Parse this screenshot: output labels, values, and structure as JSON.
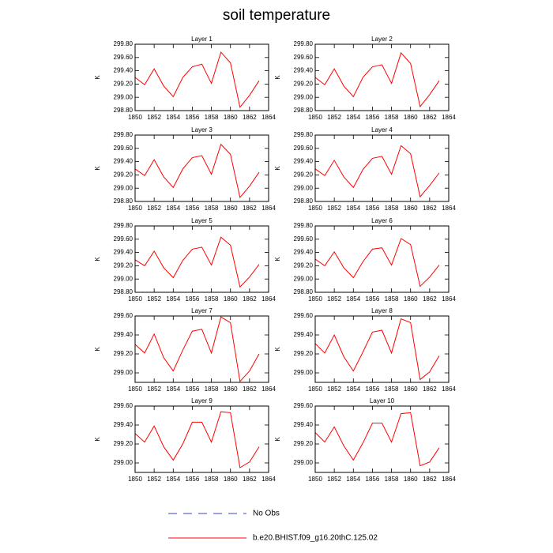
{
  "title": "soil temperature",
  "legend": [
    {
      "name": "No Obs",
      "color": "#3344cc",
      "dashed": true
    },
    {
      "name": "b.e20.BHIST.f09_g16.20thC.125.02",
      "color": "#ff0000",
      "dashed": false
    }
  ],
  "chart_data": [
    {
      "type": "line",
      "title": "Layer 1",
      "y_label": "K",
      "color": "#ff0000",
      "x": [
        1850,
        1851,
        1852,
        1853,
        1854,
        1855,
        1856,
        1857,
        1858,
        1859,
        1860,
        1861,
        1862,
        1863
      ],
      "values": [
        299.3,
        299.19,
        299.43,
        299.17,
        299.01,
        299.3,
        299.46,
        299.5,
        299.21,
        299.68,
        299.52,
        298.85,
        299.03,
        299.25
      ],
      "xlim": [
        1850,
        1864
      ],
      "xticks": [
        1850,
        1852,
        1854,
        1856,
        1858,
        1860,
        1862,
        1864
      ],
      "ylim": [
        298.8,
        299.8
      ],
      "yticks": [
        {
          "value": 298.8,
          "label": "298.80"
        },
        {
          "value": 299.0,
          "label": "299.00"
        },
        {
          "value": 299.2,
          "label": "299.20"
        },
        {
          "value": 299.4,
          "label": "299.40"
        },
        {
          "value": 299.6,
          "label": "299.60"
        },
        {
          "value": 299.8,
          "label": "299.80"
        }
      ]
    },
    {
      "type": "line",
      "title": "Layer 2",
      "y_label": "K",
      "color": "#ff0000",
      "x": [
        1850,
        1851,
        1852,
        1853,
        1854,
        1855,
        1856,
        1857,
        1858,
        1859,
        1860,
        1861,
        1862,
        1863
      ],
      "values": [
        299.3,
        299.19,
        299.43,
        299.17,
        299.01,
        299.3,
        299.46,
        299.49,
        299.21,
        299.67,
        299.51,
        298.86,
        299.04,
        299.25
      ],
      "xlim": [
        1850,
        1864
      ],
      "xticks": [
        1850,
        1852,
        1854,
        1856,
        1858,
        1860,
        1862,
        1864
      ],
      "ylim": [
        298.8,
        299.8
      ],
      "yticks": [
        {
          "value": 298.8,
          "label": "298.80"
        },
        {
          "value": 299.0,
          "label": "299.00"
        },
        {
          "value": 299.2,
          "label": "299.20"
        },
        {
          "value": 299.4,
          "label": "299.40"
        },
        {
          "value": 299.6,
          "label": "299.60"
        },
        {
          "value": 299.8,
          "label": "299.80"
        }
      ]
    },
    {
      "type": "line",
      "title": "Layer 3",
      "y_label": "K",
      "color": "#ff0000",
      "x": [
        1850,
        1851,
        1852,
        1853,
        1854,
        1855,
        1856,
        1857,
        1858,
        1859,
        1860,
        1861,
        1862,
        1863
      ],
      "values": [
        299.29,
        299.19,
        299.43,
        299.17,
        299.01,
        299.29,
        299.46,
        299.49,
        299.21,
        299.66,
        299.51,
        298.86,
        299.03,
        299.24
      ],
      "xlim": [
        1850,
        1864
      ],
      "xticks": [
        1850,
        1852,
        1854,
        1856,
        1858,
        1860,
        1862,
        1864
      ],
      "ylim": [
        298.8,
        299.8
      ],
      "yticks": [
        {
          "value": 298.8,
          "label": "298.80"
        },
        {
          "value": 299.0,
          "label": "299.00"
        },
        {
          "value": 299.2,
          "label": "299.20"
        },
        {
          "value": 299.4,
          "label": "299.40"
        },
        {
          "value": 299.6,
          "label": "299.60"
        },
        {
          "value": 299.8,
          "label": "299.80"
        }
      ]
    },
    {
      "type": "line",
      "title": "Layer 4",
      "y_label": "K",
      "color": "#ff0000",
      "x": [
        1850,
        1851,
        1852,
        1853,
        1854,
        1855,
        1856,
        1857,
        1858,
        1859,
        1860,
        1861,
        1862,
        1863
      ],
      "values": [
        299.29,
        299.19,
        299.42,
        299.17,
        299.01,
        299.28,
        299.45,
        299.48,
        299.21,
        299.64,
        299.52,
        298.87,
        299.04,
        299.23
      ],
      "xlim": [
        1850,
        1864
      ],
      "xticks": [
        1850,
        1852,
        1854,
        1856,
        1858,
        1860,
        1862,
        1864
      ],
      "ylim": [
        298.8,
        299.8
      ],
      "yticks": [
        {
          "value": 298.8,
          "label": "298.80"
        },
        {
          "value": 299.0,
          "label": "299.00"
        },
        {
          "value": 299.2,
          "label": "299.20"
        },
        {
          "value": 299.4,
          "label": "299.40"
        },
        {
          "value": 299.6,
          "label": "299.60"
        },
        {
          "value": 299.8,
          "label": "299.80"
        }
      ]
    },
    {
      "type": "line",
      "title": "Layer 5",
      "y_label": "K",
      "color": "#ff0000",
      "x": [
        1850,
        1851,
        1852,
        1853,
        1854,
        1855,
        1856,
        1857,
        1858,
        1859,
        1860,
        1861,
        1862,
        1863
      ],
      "values": [
        299.29,
        299.2,
        299.42,
        299.17,
        299.02,
        299.28,
        299.45,
        299.48,
        299.21,
        299.63,
        299.51,
        298.88,
        299.03,
        299.22
      ],
      "xlim": [
        1850,
        1864
      ],
      "xticks": [
        1850,
        1852,
        1854,
        1856,
        1858,
        1860,
        1862,
        1864
      ],
      "ylim": [
        298.8,
        299.8
      ],
      "yticks": [
        {
          "value": 298.8,
          "label": "298.80"
        },
        {
          "value": 299.0,
          "label": "299.00"
        },
        {
          "value": 299.2,
          "label": "299.20"
        },
        {
          "value": 299.4,
          "label": "299.40"
        },
        {
          "value": 299.6,
          "label": "299.60"
        },
        {
          "value": 299.8,
          "label": "299.80"
        }
      ]
    },
    {
      "type": "line",
      "title": "Layer 6",
      "y_label": "K",
      "color": "#ff0000",
      "x": [
        1850,
        1851,
        1852,
        1853,
        1854,
        1855,
        1856,
        1857,
        1858,
        1859,
        1860,
        1861,
        1862,
        1863
      ],
      "values": [
        299.3,
        299.2,
        299.41,
        299.17,
        299.02,
        299.26,
        299.45,
        299.47,
        299.21,
        299.61,
        299.52,
        298.89,
        299.03,
        299.21
      ],
      "xlim": [
        1850,
        1864
      ],
      "xticks": [
        1850,
        1852,
        1854,
        1856,
        1858,
        1860,
        1862,
        1864
      ],
      "ylim": [
        298.8,
        299.8
      ],
      "yticks": [
        {
          "value": 298.8,
          "label": "298.80"
        },
        {
          "value": 299.0,
          "label": "299.00"
        },
        {
          "value": 299.2,
          "label": "299.20"
        },
        {
          "value": 299.4,
          "label": "299.40"
        },
        {
          "value": 299.6,
          "label": "299.60"
        },
        {
          "value": 299.8,
          "label": "299.80"
        }
      ]
    },
    {
      "type": "line",
      "title": "Layer 7",
      "y_label": "K",
      "color": "#ff0000",
      "x": [
        1850,
        1851,
        1852,
        1853,
        1854,
        1855,
        1856,
        1857,
        1858,
        1859,
        1860,
        1861,
        1862,
        1863
      ],
      "values": [
        299.3,
        299.21,
        299.41,
        299.16,
        299.02,
        299.24,
        299.44,
        299.46,
        299.21,
        299.59,
        299.53,
        298.91,
        299.02,
        299.2
      ],
      "xlim": [
        1850,
        1864
      ],
      "xticks": [
        1850,
        1852,
        1854,
        1856,
        1858,
        1860,
        1862,
        1864
      ],
      "ylim": [
        298.9,
        299.6
      ],
      "yticks": [
        {
          "value": 299.0,
          "label": "299.00"
        },
        {
          "value": 299.2,
          "label": "299.20"
        },
        {
          "value": 299.4,
          "label": "299.40"
        },
        {
          "value": 299.6,
          "label": "299.60"
        }
      ]
    },
    {
      "type": "line",
      "title": "Layer 8",
      "y_label": "K",
      "color": "#ff0000",
      "x": [
        1850,
        1851,
        1852,
        1853,
        1854,
        1855,
        1856,
        1857,
        1858,
        1859,
        1860,
        1861,
        1862,
        1863
      ],
      "values": [
        299.31,
        299.21,
        299.4,
        299.17,
        299.02,
        299.22,
        299.43,
        299.45,
        299.21,
        299.57,
        299.53,
        298.93,
        299.01,
        299.18
      ],
      "xlim": [
        1850,
        1864
      ],
      "xticks": [
        1850,
        1852,
        1854,
        1856,
        1858,
        1860,
        1862,
        1864
      ],
      "ylim": [
        298.9,
        299.6
      ],
      "yticks": [
        {
          "value": 299.0,
          "label": "299.00"
        },
        {
          "value": 299.2,
          "label": "299.20"
        },
        {
          "value": 299.4,
          "label": "299.40"
        },
        {
          "value": 299.6,
          "label": "299.60"
        }
      ]
    },
    {
      "type": "line",
      "title": "Layer 9",
      "y_label": "K",
      "color": "#ff0000",
      "x": [
        1850,
        1851,
        1852,
        1853,
        1854,
        1855,
        1856,
        1857,
        1858,
        1859,
        1860,
        1861,
        1862,
        1863
      ],
      "values": [
        299.31,
        299.22,
        299.39,
        299.17,
        299.03,
        299.2,
        299.43,
        299.43,
        299.22,
        299.54,
        299.53,
        298.95,
        299.01,
        299.17
      ],
      "xlim": [
        1850,
        1864
      ],
      "xticks": [
        1850,
        1852,
        1854,
        1856,
        1858,
        1860,
        1862,
        1864
      ],
      "ylim": [
        298.9,
        299.6
      ],
      "yticks": [
        {
          "value": 299.0,
          "label": "299.00"
        },
        {
          "value": 299.2,
          "label": "299.20"
        },
        {
          "value": 299.4,
          "label": "299.40"
        },
        {
          "value": 299.6,
          "label": "299.60"
        }
      ]
    },
    {
      "type": "line",
      "title": "Layer 10",
      "y_label": "K",
      "color": "#ff0000",
      "x": [
        1850,
        1851,
        1852,
        1853,
        1854,
        1855,
        1856,
        1857,
        1858,
        1859,
        1860,
        1861,
        1862,
        1863
      ],
      "values": [
        299.32,
        299.22,
        299.38,
        299.18,
        299.03,
        299.21,
        299.42,
        299.42,
        299.22,
        299.52,
        299.53,
        298.97,
        299.01,
        299.16
      ],
      "xlim": [
        1850,
        1864
      ],
      "xticks": [
        1850,
        1852,
        1854,
        1856,
        1858,
        1860,
        1862,
        1864
      ],
      "ylim": [
        298.9,
        299.6
      ],
      "yticks": [
        {
          "value": 299.0,
          "label": "299.00"
        },
        {
          "value": 299.2,
          "label": "299.20"
        },
        {
          "value": 299.4,
          "label": "299.40"
        },
        {
          "value": 299.6,
          "label": "299.60"
        }
      ]
    }
  ]
}
